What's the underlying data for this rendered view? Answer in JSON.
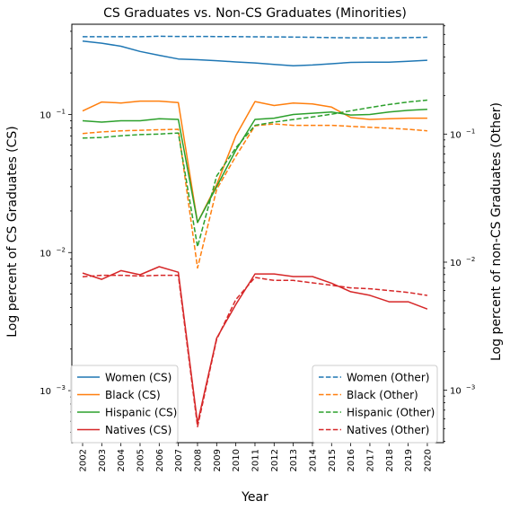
{
  "chart_data": {
    "type": "line",
    "title": "CS Graduates vs. Non-CS Graduates (Minorities)",
    "xlabel": "Year",
    "ylabel_left": "Log percent of CS Graduates (CS)",
    "ylabel_right": "Log percent of non-CS Graduates (Other)",
    "scale": "log",
    "ylim_left": [
      0.00042,
      0.45
    ],
    "ylim_right": [
      0.00039,
      0.72
    ],
    "left_ticks": [
      {
        "value": 0.001,
        "label": "10"
      },
      {
        "value": 0.01,
        "label": "10"
      },
      {
        "value": 0.1,
        "label": "10"
      }
    ],
    "left_tick_exponents": [
      "−3",
      "−2",
      "−1"
    ],
    "right_ticks": [
      {
        "value": 0.001,
        "label": "10"
      },
      {
        "value": 0.01,
        "label": "10"
      },
      {
        "value": 0.1,
        "label": "10"
      }
    ],
    "right_tick_exponents": [
      "−3",
      "−2",
      "−1"
    ],
    "x": [
      "2002",
      "2003",
      "2004",
      "2005",
      "2006",
      "2007",
      "2008",
      "2009",
      "2010",
      "2011",
      "2012",
      "2013",
      "2014",
      "2015",
      "2016",
      "2017",
      "2018",
      "2019",
      "2020"
    ],
    "series": [
      {
        "name": "Women (CS)",
        "axis": "left",
        "style": "solid",
        "color": "#1f77b4",
        "values": [
          0.34,
          0.328,
          0.312,
          0.286,
          0.268,
          0.252,
          0.249,
          0.245,
          0.24,
          0.236,
          0.23,
          0.225,
          0.228,
          0.233,
          0.238,
          0.239,
          0.239,
          0.243,
          0.247
        ]
      },
      {
        "name": "Black (CS)",
        "axis": "left",
        "style": "solid",
        "color": "#ff7f0e",
        "values": [
          0.106,
          0.123,
          0.121,
          0.125,
          0.125,
          0.122,
          0.0165,
          0.031,
          0.07,
          0.124,
          0.116,
          0.121,
          0.119,
          0.113,
          0.095,
          0.092,
          0.093,
          0.094,
          0.094
        ]
      },
      {
        "name": "Hispanic (CS)",
        "axis": "left",
        "style": "solid",
        "color": "#2ca02c",
        "values": [
          0.09,
          0.088,
          0.09,
          0.09,
          0.093,
          0.092,
          0.0165,
          0.03,
          0.055,
          0.092,
          0.094,
          0.1,
          0.102,
          0.104,
          0.099,
          0.1,
          0.104,
          0.107,
          0.109
        ]
      },
      {
        "name": "Natives (CS)",
        "axis": "left",
        "style": "solid",
        "color": "#d62728",
        "values": [
          0.0071,
          0.0064,
          0.0074,
          0.0069,
          0.0079,
          0.0072,
          0.00058,
          0.0024,
          0.0042,
          0.007,
          0.007,
          0.0067,
          0.0067,
          0.006,
          0.0052,
          0.0049,
          0.0044,
          0.0044,
          0.0039
        ]
      },
      {
        "name": "Women (Other)",
        "axis": "right",
        "style": "dashed",
        "color": "#1f77b4",
        "values": [
          0.575,
          0.575,
          0.575,
          0.575,
          0.58,
          0.578,
          0.578,
          0.577,
          0.576,
          0.574,
          0.573,
          0.572,
          0.57,
          0.566,
          0.564,
          0.563,
          0.563,
          0.566,
          0.57
        ]
      },
      {
        "name": "Black (Other)",
        "axis": "right",
        "style": "dashed",
        "color": "#ff7f0e",
        "values": [
          0.101,
          0.104,
          0.106,
          0.107,
          0.108,
          0.109,
          0.009,
          0.037,
          0.067,
          0.116,
          0.12,
          0.117,
          0.117,
          0.117,
          0.115,
          0.113,
          0.111,
          0.109,
          0.106
        ]
      },
      {
        "name": "Hispanic (Other)",
        "axis": "right",
        "style": "dashed",
        "color": "#2ca02c",
        "values": [
          0.093,
          0.094,
          0.097,
          0.099,
          0.1,
          0.102,
          0.0132,
          0.047,
          0.078,
          0.117,
          0.124,
          0.13,
          0.136,
          0.143,
          0.152,
          0.161,
          0.17,
          0.178,
          0.184
        ]
      },
      {
        "name": "Natives (Other)",
        "axis": "right",
        "style": "dashed",
        "color": "#d62728",
        "values": [
          0.0077,
          0.0079,
          0.0079,
          0.0078,
          0.0079,
          0.0079,
          0.00052,
          0.0025,
          0.0051,
          0.0076,
          0.0072,
          0.0072,
          0.0069,
          0.0066,
          0.0063,
          0.0062,
          0.006,
          0.0058,
          0.0055
        ]
      }
    ],
    "legend_left": {
      "placement": "lower-left",
      "entries": [
        "Women (CS)",
        "Black (CS)",
        "Hispanic (CS)",
        "Natives (CS)"
      ]
    },
    "legend_right": {
      "placement": "lower-right",
      "entries": [
        "Women (Other)",
        "Black (Other)",
        "Hispanic (Other)",
        "Natives (Other)"
      ]
    },
    "grid": false
  }
}
